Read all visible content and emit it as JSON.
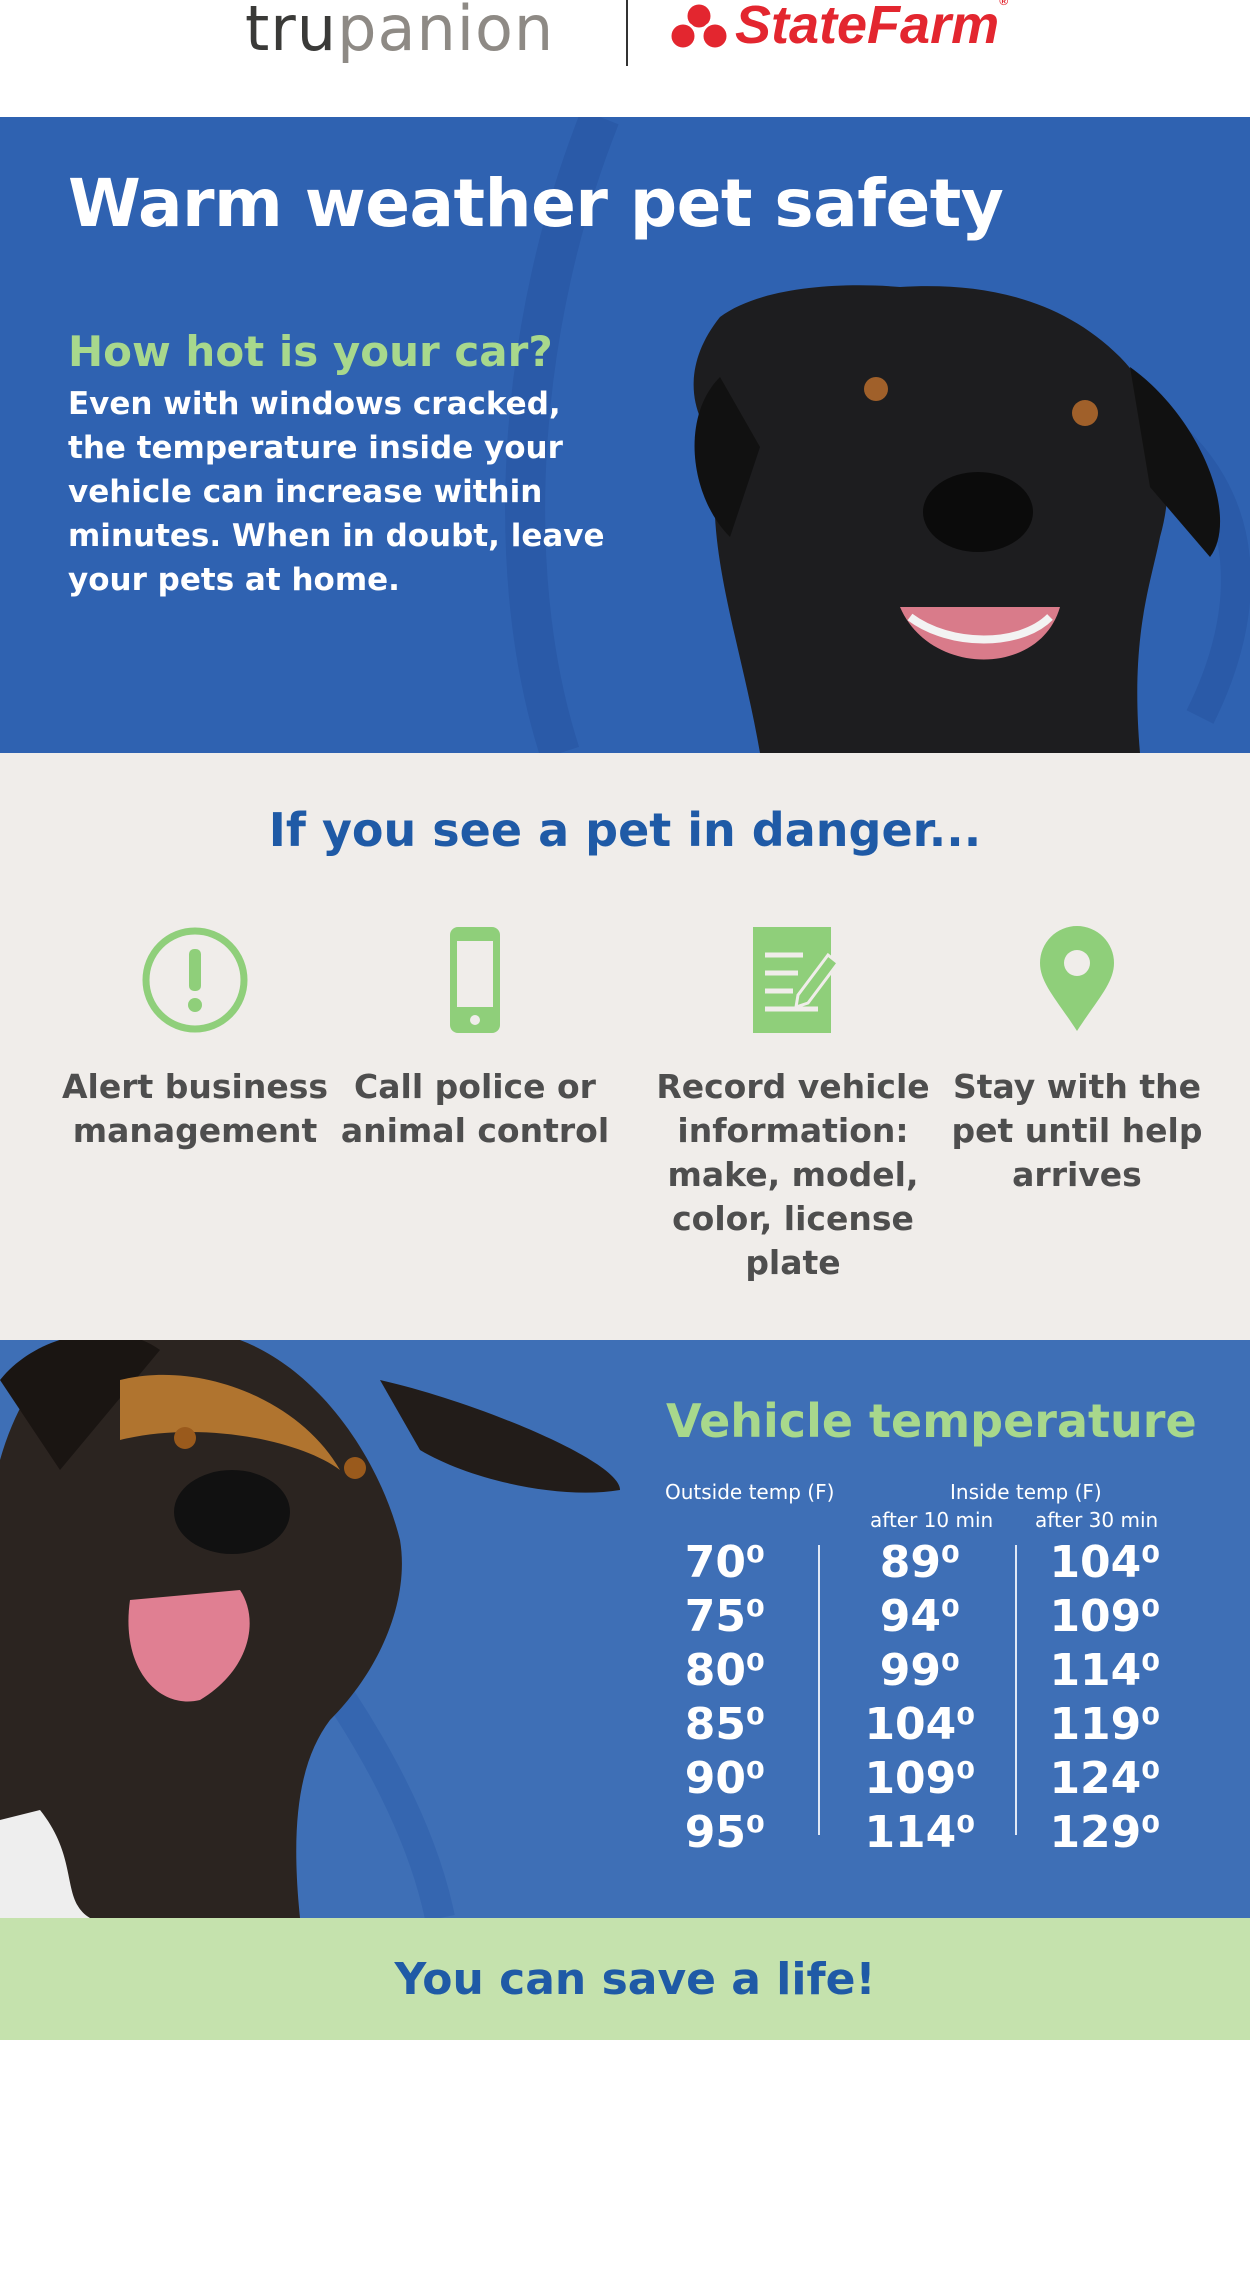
{
  "logos": {
    "trupanion_a": "tru",
    "trupanion_b": "panion",
    "trupanion_tm": "™",
    "statefarm": "StateFarm",
    "statefarm_reg": "®"
  },
  "hero": {
    "title": "Warm weather pet safety",
    "subtitle": "How hot is your car?",
    "body": "Even with windows cracked, the temperature inside your vehicle can increase within minutes. When in doubt, leave your pets at home."
  },
  "danger": {
    "heading": "If you see a pet in danger...",
    "steps": [
      {
        "icon": "alert-icon",
        "label": "Alert business management"
      },
      {
        "icon": "phone-icon",
        "label": "Call police or animal control"
      },
      {
        "icon": "document-icon",
        "label": "Record vehicle information: make, model, color, license plate"
      },
      {
        "icon": "location-pin-icon",
        "label": "Stay with the pet until help arrives"
      }
    ]
  },
  "temperature": {
    "heading": "Vehicle temperature",
    "outside_header": "Outside temp (F)",
    "inside_header": "Inside temp (F)",
    "after10_header": "after 10 min",
    "after30_header": "after 30 min",
    "rows": [
      {
        "outside": "70⁰",
        "after10": "89⁰",
        "after30": "104⁰"
      },
      {
        "outside": "75⁰",
        "after10": "94⁰",
        "after30": "109⁰"
      },
      {
        "outside": "80⁰",
        "after10": "99⁰",
        "after30": "114⁰"
      },
      {
        "outside": "85⁰",
        "after10": "104⁰",
        "after30": "119⁰"
      },
      {
        "outside": "90⁰",
        "after10": "109⁰",
        "after30": "124⁰"
      },
      {
        "outside": "95⁰",
        "after10": "114⁰",
        "after30": "129⁰"
      }
    ]
  },
  "footer": {
    "tagline": "You can save a life!"
  },
  "colors": {
    "blue": "#2f62b1",
    "green": "#a8d88c",
    "heading_blue": "#1f5aa6",
    "beige": "#f0edea",
    "light_green": "#c5e2ad"
  }
}
